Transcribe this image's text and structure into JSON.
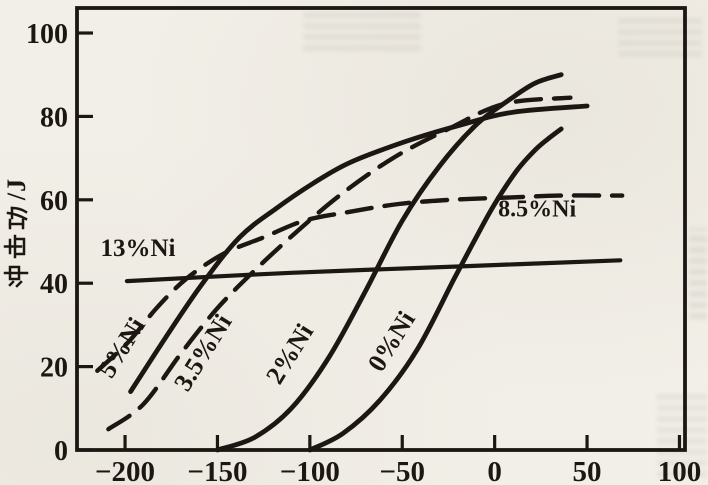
{
  "figure": {
    "ylabel": "冲击功/J",
    "paper_color": "#f2efe8",
    "ink_color": "#1c1712"
  },
  "chart_data": {
    "type": "line",
    "title": "",
    "xlabel": "",
    "ylabel": "冲击功/J",
    "xlim": [
      -226,
      103
    ],
    "ylim": [
      0,
      106
    ],
    "grid": false,
    "legend": "curve-labels-inline",
    "x_ticks": [
      -200,
      -150,
      -100,
      -50,
      0,
      50,
      100
    ],
    "x_tick_labels": [
      "−200",
      "−150",
      "−100",
      "−50",
      "0",
      "50",
      "100"
    ],
    "y_ticks": [
      0,
      20,
      40,
      60,
      80,
      100
    ],
    "y_tick_labels": [
      "0",
      "20",
      "40",
      "60",
      "80",
      "100"
    ],
    "series": [
      {
        "name": "13%Ni",
        "style": "solid",
        "width": 4.2,
        "points": [
          [
            -199,
            40.5
          ],
          [
            -110,
            42.5
          ],
          [
            -20,
            44
          ],
          [
            68,
            45.5
          ]
        ],
        "label": {
          "text": "13%Ni",
          "x": -193,
          "y": 46.5,
          "rotate": 0,
          "size": 25
        }
      },
      {
        "name": "8.5%Ni",
        "style": "dashed",
        "width": 4.4,
        "points": [
          [
            -215,
            19
          ],
          [
            -198,
            26
          ],
          [
            -183,
            34
          ],
          [
            -167,
            41
          ],
          [
            -147,
            47
          ],
          [
            -125,
            51
          ],
          [
            -103,
            55
          ],
          [
            -80,
            57
          ],
          [
            -52,
            59
          ],
          [
            -24,
            60
          ],
          [
            5,
            60.5
          ],
          [
            35,
            61
          ],
          [
            69,
            61
          ]
        ],
        "label": {
          "text": "8.5%Ni",
          "x": 23,
          "y": 56,
          "rotate": 0,
          "size": 24
        }
      },
      {
        "name": "5%Ni",
        "style": "solid",
        "width": 4.8,
        "points": [
          [
            -197,
            14
          ],
          [
            -178,
            27
          ],
          [
            -158,
            40
          ],
          [
            -138,
            51
          ],
          [
            -118,
            58
          ],
          [
            -98,
            64
          ],
          [
            -78,
            69
          ],
          [
            -48,
            74
          ],
          [
            -18,
            78
          ],
          [
            10,
            81
          ],
          [
            50,
            82.5
          ]
        ],
        "label": {
          "text": "5%Ni",
          "x": -198,
          "y": 23.5,
          "rotate": -58,
          "size": 26
        }
      },
      {
        "name": "3.5%Ni",
        "style": "dashed",
        "width": 4.4,
        "points": [
          [
            -209,
            5
          ],
          [
            -190,
            11
          ],
          [
            -170,
            23
          ],
          [
            -150,
            34
          ],
          [
            -130,
            43
          ],
          [
            -108,
            52
          ],
          [
            -84,
            61
          ],
          [
            -55,
            70
          ],
          [
            -25,
            77
          ],
          [
            5,
            83
          ],
          [
            41,
            84.5
          ]
        ],
        "label": {
          "text": "3.5%Ni",
          "x": -154,
          "y": 22.3,
          "rotate": -58,
          "size": 26
        }
      },
      {
        "name": "2%Ni",
        "style": "solid",
        "width": 4.8,
        "points": [
          [
            -150,
            0
          ],
          [
            -130,
            3
          ],
          [
            -110,
            10
          ],
          [
            -90,
            22
          ],
          [
            -70,
            38
          ],
          [
            -50,
            55
          ],
          [
            -30,
            68
          ],
          [
            -10,
            78
          ],
          [
            8,
            84
          ],
          [
            22,
            88
          ],
          [
            36,
            90
          ]
        ],
        "label": {
          "text": "2%Ni",
          "x": -107,
          "y": 22,
          "rotate": -58,
          "size": 26
        }
      },
      {
        "name": "0%Ni",
        "style": "solid",
        "width": 4.8,
        "points": [
          [
            -100,
            0
          ],
          [
            -82,
            4
          ],
          [
            -62,
            12
          ],
          [
            -42,
            24
          ],
          [
            -22,
            41
          ],
          [
            -10,
            51
          ],
          [
            0,
            59
          ],
          [
            12,
            67
          ],
          [
            22,
            72
          ],
          [
            30,
            75
          ],
          [
            36,
            77
          ]
        ],
        "label": {
          "text": "0%Ni",
          "x": -52,
          "y": 25,
          "rotate": -58,
          "size": 26
        }
      }
    ]
  }
}
